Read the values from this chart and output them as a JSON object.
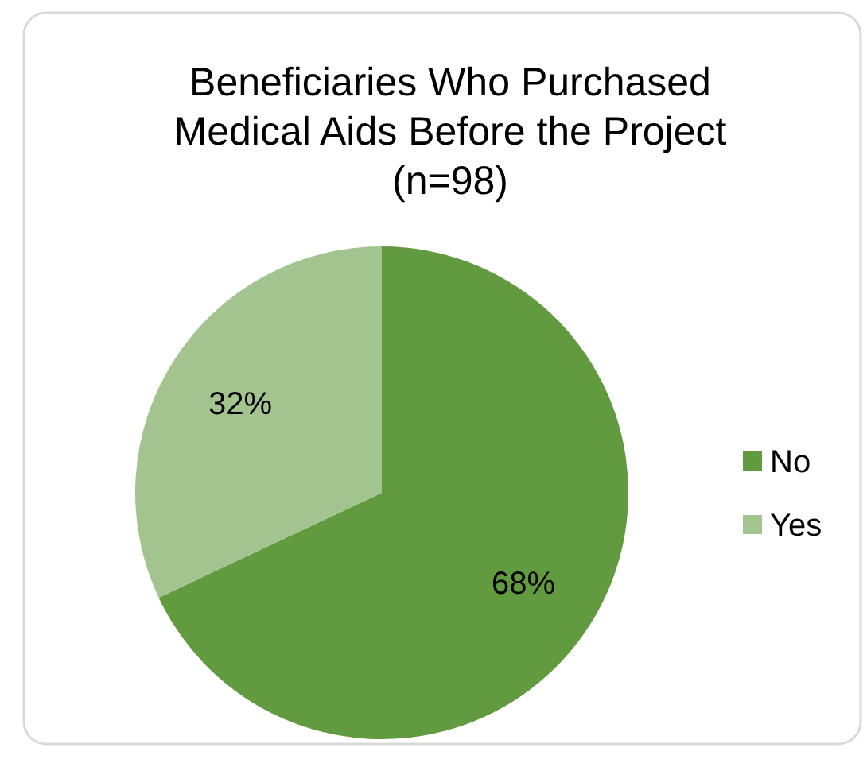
{
  "chart_data": {
    "type": "pie",
    "title": "Beneficiaries Who Purchased Medical Aids Before the Project (n=98)",
    "categories": [
      "No",
      "Yes"
    ],
    "values": [
      68,
      32
    ],
    "value_labels": [
      "68%",
      "32%"
    ],
    "colors": [
      "#629b3f",
      "#a3c48e"
    ],
    "legend": "right"
  }
}
